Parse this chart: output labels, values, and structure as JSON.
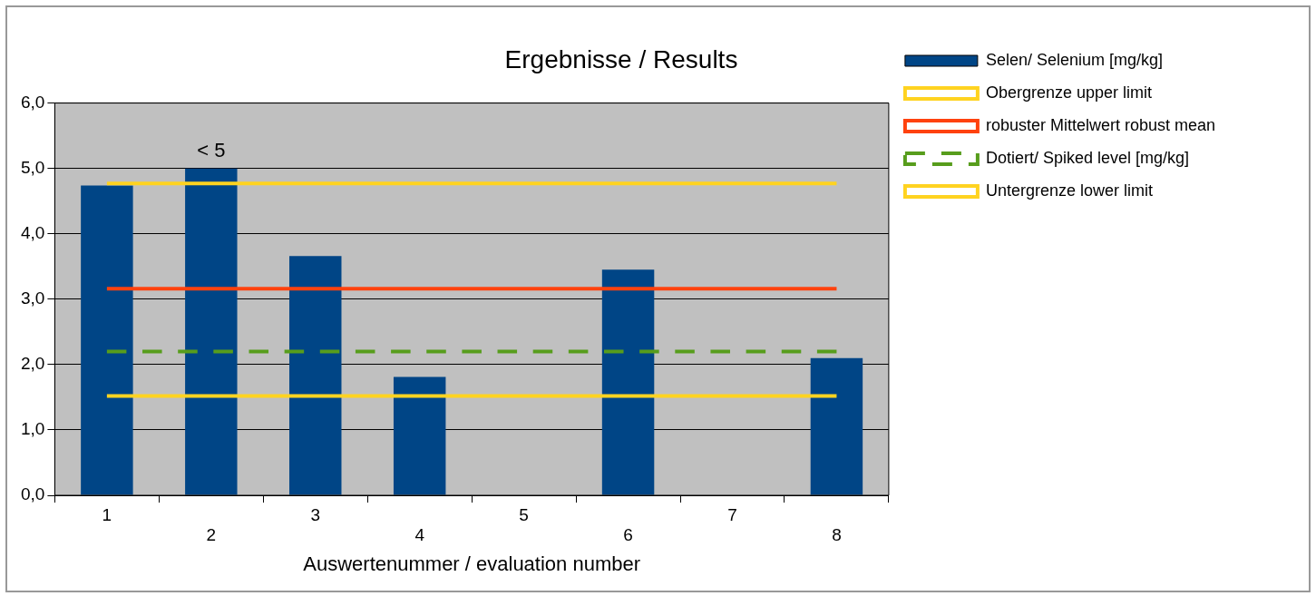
{
  "chart_data": {
    "type": "bar",
    "title": "Ergebnisse / Results",
    "xlabel": "Auswertenummer / evaluation number",
    "categories": [
      "1",
      "2",
      "3",
      "4",
      "5",
      "6",
      "7",
      "8"
    ],
    "series": [
      {
        "name": "Selen/ Selenium [mg/kg]",
        "color": "#004586",
        "values": [
          4.74,
          5.0,
          3.66,
          1.81,
          null,
          3.45,
          null,
          2.1
        ]
      },
      {
        "name": "Obergrenze upper limit",
        "type": "line",
        "color": "#ffd320",
        "line_style": "solid",
        "values": [
          4.77,
          4.77,
          4.77,
          4.77,
          4.77,
          4.77,
          4.77,
          4.77
        ]
      },
      {
        "name": "robuster Mittelwert robust mean",
        "type": "line",
        "color": "#ff420e",
        "line_style": "solid",
        "values": [
          3.16,
          3.16,
          3.16,
          3.16,
          3.16,
          3.16,
          3.16,
          3.16
        ]
      },
      {
        "name": "Dotiert/ Spiked level [mg/kg]",
        "type": "line",
        "color": "#579d1c",
        "line_style": "dashed",
        "values": [
          2.2,
          2.2,
          2.2,
          2.2,
          2.2,
          2.2,
          2.2,
          2.2
        ]
      },
      {
        "name": "Untergrenze lower limit",
        "type": "line",
        "color": "#ffd320",
        "line_style": "solid",
        "values": [
          1.52,
          1.52,
          1.52,
          1.52,
          1.52,
          1.52,
          1.52,
          1.52
        ]
      }
    ],
    "annotations": [
      {
        "text": "< 5",
        "x": "2",
        "y": 5.0
      }
    ],
    "ylim": [
      0,
      6
    ],
    "yticks": [
      {
        "value": 0,
        "label": "0,0"
      },
      {
        "value": 1,
        "label": "1,0"
      },
      {
        "value": 2,
        "label": "2,0"
      },
      {
        "value": 3,
        "label": "3,0"
      },
      {
        "value": 4,
        "label": "4,0"
      },
      {
        "value": 5,
        "label": "5,0"
      },
      {
        "value": 6,
        "label": "6,0"
      }
    ],
    "grid": "y",
    "legend": "right",
    "marker": "none"
  }
}
